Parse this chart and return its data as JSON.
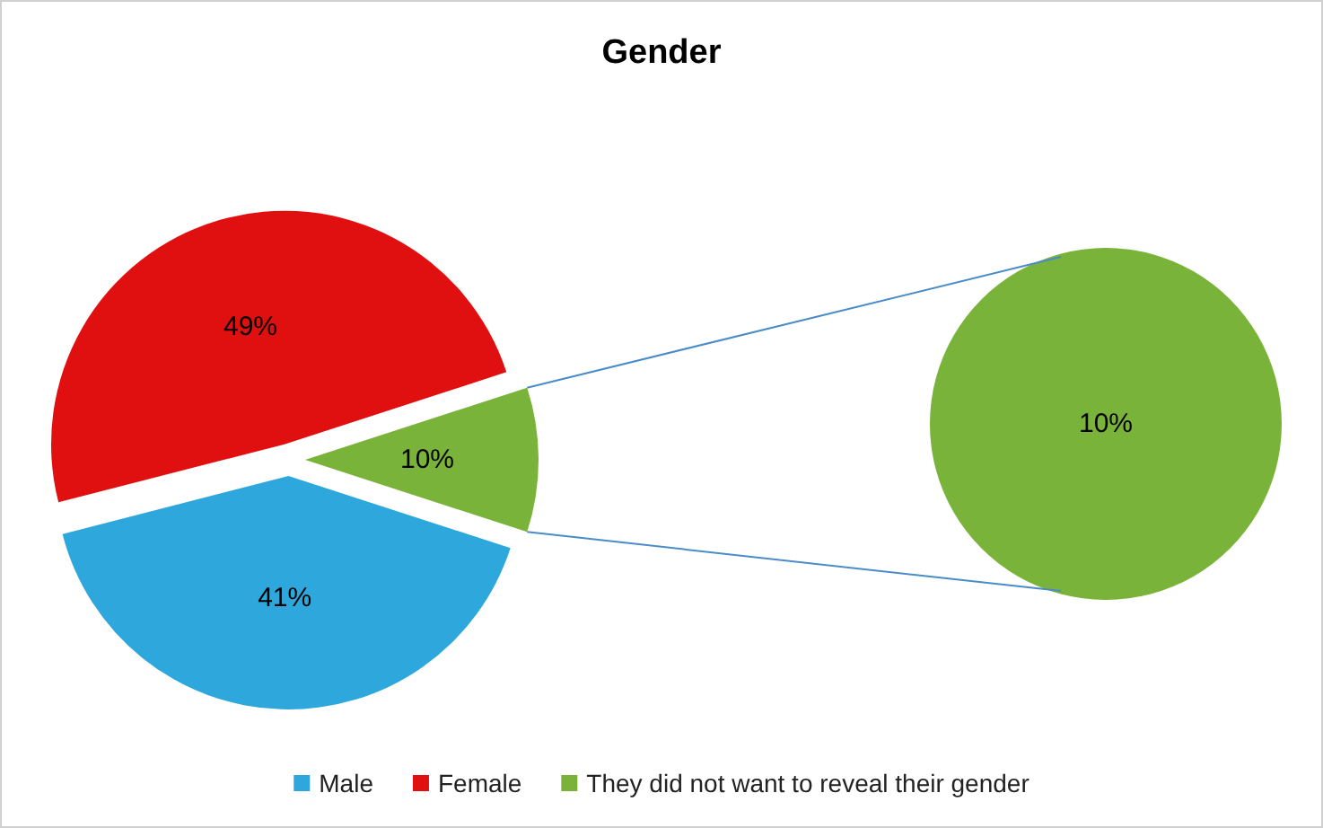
{
  "chart_data": {
    "type": "pie",
    "title": "Gender",
    "categories": [
      "Male",
      "Female",
      "They did not want to reveal their gender"
    ],
    "values": [
      41,
      49,
      10
    ],
    "colors": [
      "#2ea8dc",
      "#e01010",
      "#7ab33a"
    ],
    "value_labels": [
      "41%",
      "49%",
      "10%"
    ],
    "annotations": [
      "10%"
    ],
    "legend": "bottom"
  }
}
